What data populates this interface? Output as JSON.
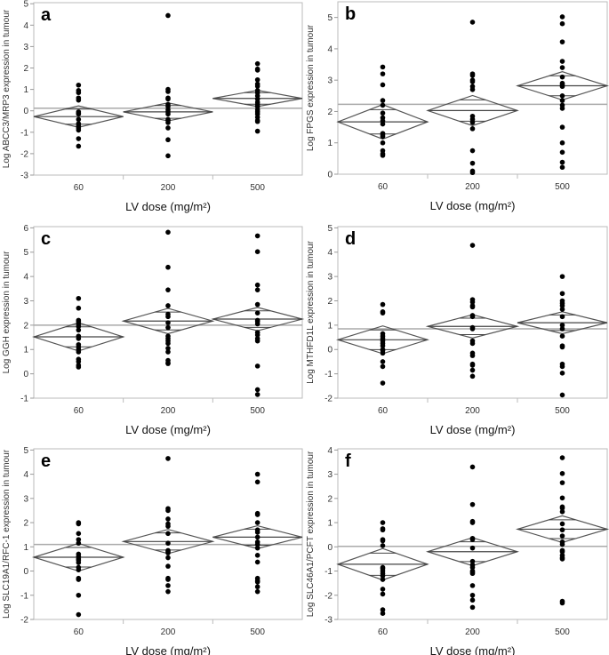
{
  "chart_data": [
    {
      "type": "scatter",
      "panel": "a",
      "ylabel": "Log ABCC3/MRP3 expression in tumour",
      "xlabel": "LV dose (mg/m²)",
      "categories": [
        "60",
        "200",
        "500"
      ],
      "ylim": [
        -3,
        5
      ],
      "yticks": [
        "-3",
        "-2",
        "-1",
        "0",
        "1",
        "2",
        "3",
        "4",
        "5"
      ],
      "grand_mean": 0.12,
      "groups": [
        {
          "mean": -0.27,
          "ci": 0.5,
          "points": [
            1.2,
            0.95,
            0.85,
            0.6,
            0.5,
            -0.05,
            -0.1,
            -0.15,
            -0.4,
            -0.6,
            -0.7,
            -0.8,
            -0.9,
            -1.3,
            -1.65
          ]
        },
        {
          "mean": -0.05,
          "ci": 0.42,
          "points": [
            4.45,
            1.0,
            0.9,
            0.6,
            0.55,
            0.3,
            0.2,
            0.05,
            -0.05,
            -0.15,
            -0.4,
            -0.45,
            -0.55,
            -0.8,
            -1.35,
            -2.1
          ]
        },
        {
          "mean": 0.58,
          "ci": 0.38,
          "points": [
            2.2,
            1.95,
            1.9,
            1.45,
            1.25,
            1.15,
            0.95,
            0.85,
            0.7,
            0.55,
            0.4,
            0.3,
            0.2,
            0.05,
            -0.05,
            -0.15,
            -0.3,
            -0.45,
            -0.5,
            -0.95
          ]
        }
      ]
    },
    {
      "type": "scatter",
      "panel": "b",
      "ylabel": "Log FPGS expression in tumour",
      "xlabel": "LV dose (mg/m²)",
      "categories": [
        "60",
        "200",
        "500"
      ],
      "ylim": [
        0,
        5.5
      ],
      "yticks": [
        "0",
        "1",
        "2",
        "3",
        "4",
        "5"
      ],
      "grand_mean": 2.23,
      "groups": [
        {
          "mean": 1.67,
          "ci": 0.55,
          "points": [
            3.42,
            3.2,
            2.85,
            2.35,
            2.2,
            1.95,
            1.8,
            1.7,
            1.6,
            1.3,
            1.25,
            1.2,
            1.0,
            0.75,
            0.65,
            0.6
          ]
        },
        {
          "mean": 2.03,
          "ci": 0.48,
          "points": [
            4.85,
            3.2,
            3.15,
            3.0,
            2.95,
            2.8,
            2.7,
            1.85,
            1.75,
            1.65,
            1.45,
            0.75,
            0.35,
            0.1,
            0.05
          ]
        },
        {
          "mean": 2.82,
          "ci": 0.45,
          "points": [
            5.02,
            4.8,
            4.22,
            3.6,
            3.4,
            3.1,
            2.9,
            2.85,
            2.8,
            2.5,
            2.35,
            2.2,
            2.1,
            1.5,
            1.0,
            0.7,
            0.38,
            0.22
          ]
        }
      ]
    },
    {
      "type": "scatter",
      "panel": "c",
      "ylabel": "Log GGH expression in tumour",
      "xlabel": "LV dose (mg/m²)",
      "categories": [
        "60",
        "200",
        "500"
      ],
      "ylim": [
        -1,
        6
      ],
      "yticks": [
        "-1",
        "0",
        "1",
        "2",
        "3",
        "4",
        "5",
        "6"
      ],
      "grand_mean": 2.0,
      "groups": [
        {
          "mean": 1.52,
          "ci": 0.58,
          "points": [
            3.1,
            2.7,
            2.2,
            2.15,
            2.05,
            1.95,
            1.8,
            1.55,
            1.45,
            1.2,
            1.1,
            1.0,
            0.9,
            0.6,
            0.5,
            0.35,
            0.28
          ]
        },
        {
          "mean": 2.17,
          "ci": 0.52,
          "points": [
            5.82,
            4.38,
            3.45,
            2.8,
            2.45,
            2.35,
            2.1,
            1.9,
            1.55,
            1.45,
            1.35,
            1.25,
            1.05,
            0.9,
            0.55,
            0.45,
            0.42
          ]
        },
        {
          "mean": 2.25,
          "ci": 0.48,
          "points": [
            5.67,
            5.02,
            3.65,
            3.45,
            2.85,
            2.5,
            2.2,
            2.15,
            2.05,
            1.7,
            1.6,
            1.45,
            1.35,
            0.32,
            -0.65,
            -0.85
          ]
        }
      ]
    },
    {
      "type": "scatter",
      "panel": "d",
      "ylabel": "Log MTHFD1L expression in tumour",
      "xlabel": "LV dose (mg/m²)",
      "categories": [
        "60",
        "200",
        "500"
      ],
      "ylim": [
        -2,
        5
      ],
      "yticks": [
        "-2",
        "-1",
        "0",
        "1",
        "2",
        "3",
        "4",
        "5"
      ],
      "grand_mean": 0.85,
      "groups": [
        {
          "mean": 0.4,
          "ci": 0.57,
          "points": [
            1.85,
            1.55,
            1.5,
            0.65,
            0.55,
            0.45,
            0.35,
            0.25,
            0.15,
            0.0,
            -0.05,
            -0.15,
            -0.5,
            -0.7,
            -1.38
          ]
        },
        {
          "mean": 0.95,
          "ci": 0.48,
          "points": [
            4.28,
            2.05,
            1.95,
            1.8,
            1.75,
            1.4,
            1.35,
            0.9,
            0.85,
            0.35,
            0.25,
            -0.15,
            -0.25,
            -0.6,
            -0.65,
            -0.85,
            -1.1
          ]
        },
        {
          "mean": 1.1,
          "ci": 0.45,
          "points": [
            3.0,
            2.3,
            2.0,
            1.9,
            1.8,
            1.65,
            1.35,
            1.0,
            0.85,
            0.55,
            0.15,
            0.1,
            -0.6,
            -0.7,
            -0.97,
            -1.87
          ]
        }
      ]
    },
    {
      "type": "scatter",
      "panel": "e",
      "ylabel": "Log SLC19A1/RFC-1 expression in tumour",
      "xlabel": "LV dose (mg/m²)",
      "categories": [
        "60",
        "200",
        "500"
      ],
      "ylim": [
        -2,
        5
      ],
      "yticks": [
        "-2",
        "-1",
        "0",
        "1",
        "2",
        "3",
        "4",
        "5"
      ],
      "grand_mean": 1.1,
      "groups": [
        {
          "mean": 0.57,
          "ci": 0.57,
          "points": [
            2.0,
            1.95,
            1.55,
            1.3,
            1.15,
            0.7,
            0.6,
            0.5,
            0.45,
            0.35,
            0.15,
            0.05,
            -0.3,
            -0.35,
            -1.0,
            -1.8
          ]
        },
        {
          "mean": 1.22,
          "ci": 0.5,
          "points": [
            4.65,
            2.58,
            2.5,
            2.15,
            1.95,
            1.85,
            1.55,
            1.15,
            0.85,
            0.8,
            0.75,
            0.55,
            0.2,
            -0.3,
            -0.35,
            -0.6,
            -0.85
          ]
        },
        {
          "mean": 1.4,
          "ci": 0.47,
          "points": [
            4.0,
            3.68,
            2.38,
            2.33,
            2.0,
            1.7,
            1.6,
            1.4,
            1.2,
            1.1,
            0.95,
            0.65,
            0.37,
            -0.3,
            -0.4,
            -0.45,
            -0.65,
            -0.85
          ]
        }
      ]
    },
    {
      "type": "scatter",
      "panel": "f",
      "ylabel": "Log SLC46A1/PCFT expression in tumour",
      "xlabel": "LV dose (mg/m²)",
      "categories": [
        "60",
        "200",
        "500"
      ],
      "ylim": [
        -3,
        4
      ],
      "yticks": [
        "-3",
        "-2",
        "-1",
        "0",
        "1",
        "2",
        "3",
        "4"
      ],
      "grand_mean": 0.02,
      "groups": [
        {
          "mean": -0.72,
          "ci": 0.65,
          "points": [
            1.0,
            0.75,
            0.7,
            0.3,
            0.25,
            0.05,
            -0.85,
            -0.9,
            -1.0,
            -1.1,
            -1.2,
            -1.35,
            -1.75,
            -1.95,
            -2.6,
            -2.75
          ]
        },
        {
          "mean": -0.2,
          "ci": 0.58,
          "points": [
            3.3,
            1.75,
            1.05,
            1.0,
            0.35,
            0.3,
            -0.05,
            -0.6,
            -0.75,
            -0.85,
            -1.0,
            -1.05,
            -1.1,
            -1.6,
            -2.0,
            -2.2,
            -2.5
          ]
        },
        {
          "mean": 0.73,
          "ci": 0.55,
          "points": [
            3.68,
            3.03,
            2.65,
            2.02,
            1.65,
            1.6,
            1.45,
            0.95,
            0.7,
            0.45,
            0.2,
            0.1,
            -0.15,
            -0.2,
            -0.35,
            -0.45,
            -0.5,
            -2.25,
            -2.32
          ]
        }
      ]
    }
  ]
}
